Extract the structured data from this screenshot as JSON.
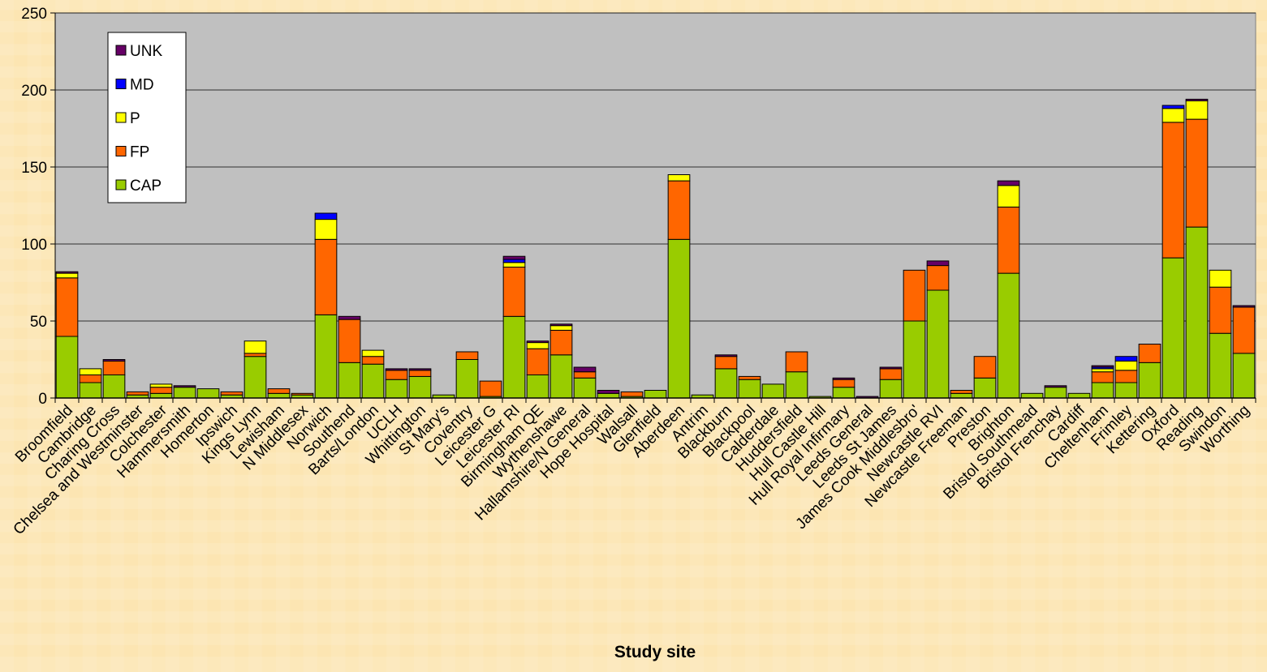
{
  "chart_data": {
    "type": "bar",
    "stacked": true,
    "title": "",
    "xlabel": "Study site",
    "ylabel": "",
    "ylim": [
      0,
      250
    ],
    "yticks": [
      0,
      50,
      100,
      150,
      200,
      250
    ],
    "grid": true,
    "legend_position": "top-left",
    "categories": [
      "Broomfield",
      "Cambridge",
      "Charing Cross",
      "Chelsea and Westminster",
      "Colchester",
      "Hammersmith",
      "Homerton",
      "Ipswich",
      "Kings Lynn",
      "Lewisham",
      "N Middlesex",
      "Norwich",
      "Southend",
      "Barts/London",
      "UCLH",
      "Whittington",
      "St Mary's",
      "Coventry",
      "Leicester G",
      "Leicester RI",
      "Birmingham QE",
      "Wythenshawe",
      "Hallamshire/N General",
      "Hope Hospital",
      "Walsall",
      "Glenfield",
      "Aberdeen",
      "Antrim",
      "Blackburn",
      "Blackpool",
      "Calderdale",
      "Huddersfield",
      "Hull Castle Hill",
      "Hull Royal Infirmary",
      "Leeds General",
      "Leeds St James",
      "James Cook Middlesbro'",
      "Newcastle RVI",
      "Newcastle Freeman",
      "Preston",
      "Brighton",
      "Bristol Southmead",
      "Bristol Frenchay",
      "Cardiff",
      "Cheltenham",
      "Frimley",
      "Kettering",
      "Oxford",
      "Reading",
      "Swindon",
      "Worthing"
    ],
    "series": [
      {
        "name": "CAP",
        "color": "#99CC00",
        "values": [
          40,
          10,
          15,
          2,
          3,
          7,
          6,
          2,
          27,
          3,
          2,
          54,
          23,
          22,
          12,
          14,
          2,
          25,
          1,
          53,
          15,
          28,
          13,
          3,
          1,
          5,
          103,
          2,
          19,
          12,
          9,
          17,
          1,
          7,
          0,
          12,
          50,
          70,
          3,
          13,
          81,
          3,
          7,
          3,
          10,
          10,
          23,
          91,
          111,
          42,
          29
        ]
      },
      {
        "name": "FP",
        "color": "#FF6600",
        "values": [
          38,
          5,
          9,
          2,
          4,
          0,
          0,
          2,
          2,
          3,
          1,
          49,
          28,
          5,
          6,
          4,
          0,
          5,
          10,
          32,
          17,
          16,
          4,
          0,
          3,
          0,
          38,
          0,
          8,
          2,
          0,
          13,
          0,
          5,
          0,
          7,
          33,
          16,
          2,
          14,
          43,
          0,
          0,
          0,
          7,
          8,
          12,
          88,
          70,
          30,
          30
        ]
      },
      {
        "name": "P",
        "color": "#FFFF00",
        "values": [
          3,
          4,
          0,
          0,
          2,
          0,
          0,
          0,
          8,
          0,
          0,
          13,
          0,
          4,
          0,
          0,
          0,
          0,
          0,
          3,
          4,
          3,
          0,
          0,
          0,
          0,
          4,
          0,
          0,
          0,
          0,
          0,
          0,
          0,
          0,
          0,
          0,
          0,
          0,
          0,
          14,
          0,
          0,
          0,
          2,
          6,
          0,
          9,
          12,
          11,
          0
        ]
      },
      {
        "name": "MD",
        "color": "#0000FF",
        "values": [
          0,
          0,
          0,
          0,
          0,
          0,
          0,
          0,
          0,
          0,
          0,
          4,
          0,
          0,
          0,
          0,
          0,
          0,
          0,
          2,
          0,
          0,
          0,
          0,
          0,
          0,
          0,
          0,
          0,
          0,
          0,
          0,
          0,
          0,
          0,
          0,
          0,
          0,
          0,
          0,
          0,
          0,
          0,
          0,
          1,
          3,
          0,
          2,
          0,
          0,
          0
        ]
      },
      {
        "name": "UNK",
        "color": "#660066",
        "values": [
          1,
          0,
          1,
          0,
          0,
          1,
          0,
          0,
          0,
          0,
          0,
          0,
          2,
          0,
          1,
          1,
          0,
          0,
          0,
          2,
          1,
          1,
          3,
          2,
          0,
          0,
          0,
          0,
          1,
          0,
          0,
          0,
          0,
          1,
          1,
          1,
          0,
          3,
          0,
          0,
          3,
          0,
          1,
          0,
          1,
          0,
          0,
          0,
          1,
          0,
          1
        ]
      }
    ],
    "legend_order": [
      "UNK",
      "MD",
      "P",
      "FP",
      "CAP"
    ]
  }
}
